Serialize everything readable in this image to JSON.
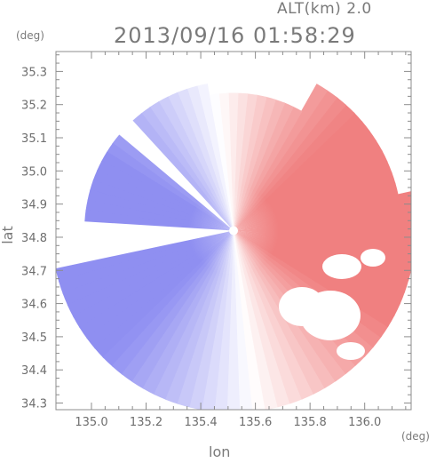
{
  "header": {
    "altitude_label": "ALT(km) 2.0",
    "timestamp": "2013/09/16 01:58:29",
    "y_unit": "(deg)",
    "x_unit": "(deg)"
  },
  "chart_data": {
    "type": "heatmap",
    "title": "2013/09/16 01:58:29",
    "subtitle": "ALT(km) 2.0",
    "xlabel": "lon",
    "ylabel": "lat",
    "xlim": [
      134.87,
      136.17
    ],
    "ylim": [
      34.28,
      35.36
    ],
    "x_ticks": [
      "135.0",
      "135.2",
      "135.4",
      "135.6",
      "135.8",
      "136.0"
    ],
    "y_ticks": [
      "34.3",
      "34.4",
      "34.5",
      "34.6",
      "34.7",
      "34.8",
      "34.9",
      "35.0",
      "35.1",
      "35.2",
      "35.3"
    ],
    "radar_center": [
      135.52,
      34.82
    ],
    "colors": {
      "positive": "#f08080",
      "negative": "#7b7bef",
      "neutral": "#ffffff",
      "axis": "#8c8c8c"
    }
  }
}
